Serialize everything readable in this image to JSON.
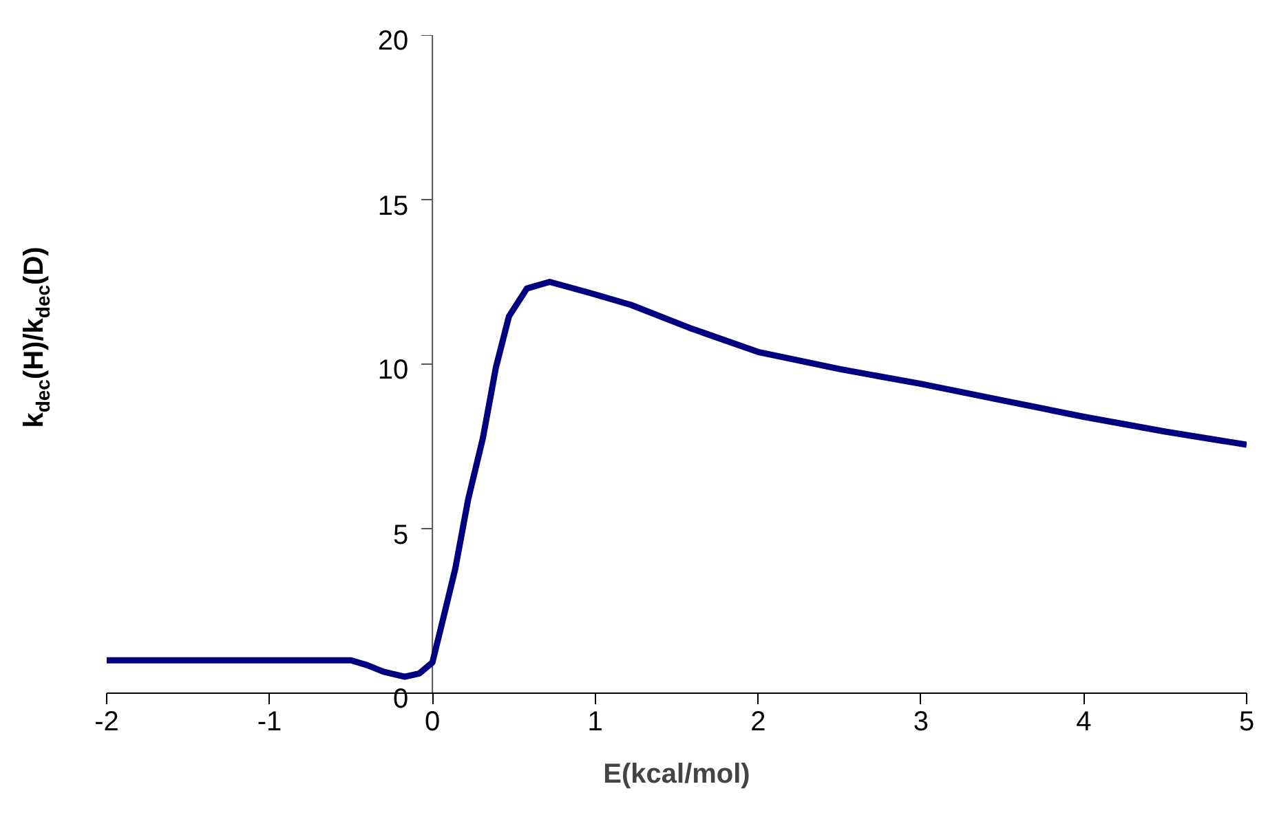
{
  "chart_data": {
    "type": "line",
    "xlabel": "E(kcal/mol)",
    "ylabel": "k$_{dec}$(H)/k$_{dec}$(D)",
    "xlim": [
      -2,
      5
    ],
    "ylim": [
      0,
      20
    ],
    "xticks": [
      -2,
      -1,
      0,
      1,
      2,
      3,
      4,
      5
    ],
    "yticks": [
      0,
      5,
      10,
      15,
      20
    ],
    "grid": false,
    "marker": "none",
    "line_style": "solid",
    "series": [
      {
        "color": "#000080",
        "x": [
          -2,
          -1.5,
          -1,
          -0.5,
          -0.4,
          -0.3,
          -0.17,
          -0.08,
          0,
          0.056,
          0.14,
          0.22,
          0.31,
          0.39,
          0.47,
          0.58,
          0.72,
          0.97,
          1.22,
          1.58,
          2,
          2.5,
          3,
          3.5,
          4,
          4.5,
          5
        ],
        "values": [
          1.0,
          1.0,
          1.0,
          1.0,
          0.85,
          0.65,
          0.5,
          0.6,
          0.93,
          2.06,
          3.77,
          5.9,
          7.75,
          9.9,
          11.45,
          12.3,
          12.5,
          12.16,
          11.8,
          11.1,
          10.37,
          9.85,
          9.4,
          8.9,
          8.4,
          7.95,
          7.55
        ]
      }
    ]
  }
}
